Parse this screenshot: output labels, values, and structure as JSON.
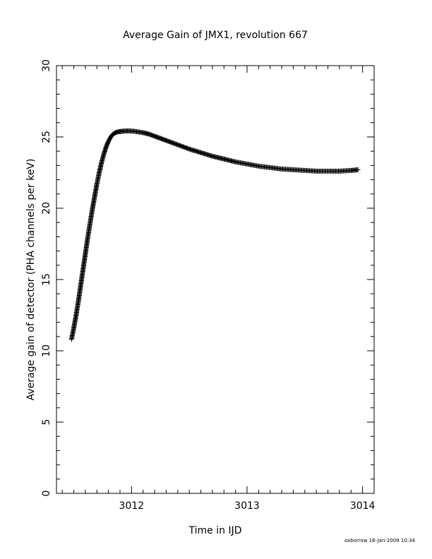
{
  "chart_data": {
    "type": "scatter",
    "title": "Average Gain of JMX1, revolution 667",
    "xlabel": "Time in IJD",
    "ylabel": "Average gain of detector (PHA channels per keV)",
    "xlim": [
      3011.35,
      3014.1
    ],
    "ylim": [
      0,
      30
    ],
    "x_ticks": [
      3012,
      3013,
      3014
    ],
    "y_ticks": [
      0,
      5,
      10,
      15,
      20,
      25,
      30
    ],
    "marker": "plus",
    "color": "#000000",
    "grid": false,
    "series": [
      {
        "x": [
          3011.48,
          3011.5,
          3011.52,
          3011.54,
          3011.56,
          3011.58,
          3011.6,
          3011.62,
          3011.64,
          3011.66,
          3011.68,
          3011.7,
          3011.72,
          3011.74,
          3011.76,
          3011.78,
          3011.8,
          3011.82,
          3011.84,
          3011.86,
          3011.88,
          3011.9,
          3011.92,
          3011.95,
          3011.98,
          3012.02,
          3012.06,
          3012.1,
          3012.15,
          3012.2,
          3012.25,
          3012.3,
          3012.4,
          3012.5,
          3012.6,
          3012.7,
          3012.8,
          3012.9,
          3013.0,
          3013.1,
          3013.2,
          3013.3,
          3013.4,
          3013.5,
          3013.6,
          3013.7,
          3013.8,
          3013.9,
          3013.96
        ],
        "y": [
          10.8,
          11.6,
          12.5,
          13.5,
          14.6,
          15.7,
          16.8,
          17.9,
          18.9,
          19.9,
          20.8,
          21.7,
          22.5,
          23.2,
          23.8,
          24.3,
          24.7,
          25.0,
          25.2,
          25.3,
          25.35,
          25.38,
          25.4,
          25.42,
          25.42,
          25.4,
          25.35,
          25.3,
          25.2,
          25.05,
          24.9,
          24.75,
          24.45,
          24.15,
          23.9,
          23.65,
          23.45,
          23.25,
          23.1,
          22.95,
          22.85,
          22.75,
          22.7,
          22.65,
          22.6,
          22.6,
          22.6,
          22.65,
          22.7
        ]
      }
    ]
  },
  "footer": {
    "stamp": "oxborrow 16-Jan-2009 10:34"
  }
}
